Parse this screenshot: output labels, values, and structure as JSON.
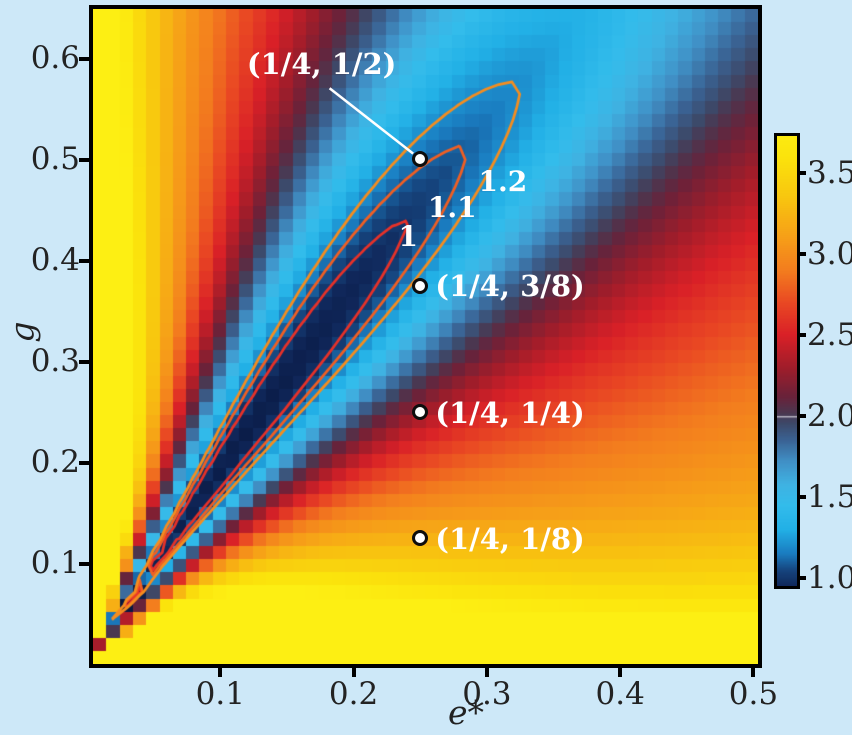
{
  "page": {
    "background": "#cde8f8"
  },
  "chart_data": {
    "type": "heatmap",
    "xlabel": "e*",
    "ylabel": "g",
    "x_range": [
      0,
      0.5
    ],
    "y_range": [
      0,
      0.65
    ],
    "x_ticks": [
      {
        "value": 0.1,
        "label": "0.1"
      },
      {
        "value": 0.2,
        "label": "0.2"
      },
      {
        "value": 0.3,
        "label": "0.3"
      },
      {
        "value": 0.4,
        "label": "0.4"
      },
      {
        "value": 0.5,
        "label": "0.5"
      }
    ],
    "y_ticks": [
      {
        "value": 0.1,
        "label": "0.1"
      },
      {
        "value": 0.2,
        "label": "0.2"
      },
      {
        "value": 0.3,
        "label": "0.3"
      },
      {
        "value": 0.4,
        "label": "0.4"
      },
      {
        "value": 0.5,
        "label": "0.5"
      },
      {
        "value": 0.6,
        "label": "0.6"
      }
    ],
    "colorbar": {
      "vmin": 0.948,
      "vmax": 3.728,
      "divider_value": 2.0,
      "ticks": [
        {
          "value": 1.0,
          "label": "1.0"
        },
        {
          "value": 1.5,
          "label": "1.5"
        },
        {
          "value": 2.0,
          "label": "2.0"
        },
        {
          "value": 2.5,
          "label": "2.5"
        },
        {
          "value": 3.0,
          "label": "3.0"
        },
        {
          "value": 3.5,
          "label": "3.5"
        }
      ],
      "colormap": [
        [
          0.8,
          "#081840"
        ],
        [
          0.95,
          "#10275a"
        ],
        [
          1.05,
          "#16467f"
        ],
        [
          1.15,
          "#1a7cc0"
        ],
        [
          1.3,
          "#22b0e6"
        ],
        [
          1.45,
          "#33bceb"
        ],
        [
          1.58,
          "#3fb2e2"
        ],
        [
          1.72,
          "#4090c6"
        ],
        [
          1.85,
          "#3a6394"
        ],
        [
          1.95,
          "#3c4a6b"
        ],
        [
          2.02,
          "#4b3750"
        ],
        [
          2.12,
          "#69223a"
        ],
        [
          2.3,
          "#a01d2a"
        ],
        [
          2.5,
          "#d92027"
        ],
        [
          2.7,
          "#e94823"
        ],
        [
          2.9,
          "#f37d1e"
        ],
        [
          3.1,
          "#f69e18"
        ],
        [
          3.35,
          "#f8c60f"
        ],
        [
          3.6,
          "#fbe30c"
        ],
        [
          3.8,
          "#fdef13"
        ]
      ]
    },
    "contours": {
      "levels": [
        {
          "value": 1.0,
          "color": "#e73128",
          "label": "1",
          "label_x": 0.241,
          "label_y": 0.424
        },
        {
          "value": 1.1,
          "color": "#f15f22",
          "label": "1.1",
          "label_x": 0.274,
          "label_y": 0.452
        },
        {
          "value": 1.2,
          "color": "#f68d1e",
          "label": "1.2",
          "label_x": 0.312,
          "label_y": 0.478
        }
      ]
    },
    "points": [
      {
        "label": "(1/4, 1/2)",
        "x": 0.25,
        "y": 0.5,
        "label_placement": "leader",
        "label_x": 0.176,
        "label_y": 0.595,
        "leader_from_x": 0.182,
        "leader_from_y": 0.571,
        "leader_to_x": 0.2447,
        "leader_to_y": 0.5063
      },
      {
        "label": "(1/4, 3/8)",
        "x": 0.25,
        "y": 0.375,
        "label_placement": "right"
      },
      {
        "label": "(1/4, 1/4)",
        "x": 0.25,
        "y": 0.25,
        "label_placement": "right"
      },
      {
        "label": "(1/4, 1/8)",
        "x": 0.25,
        "y": 0.125,
        "label_placement": "right"
      }
    ],
    "grid": {
      "nx": 50,
      "ny": 50
    },
    "value_cap": [
      0.8,
      3.8
    ],
    "field_model": {
      "valley_axis": {
        "slope": 2.0,
        "curvature": 0.35
      },
      "valley_depth": {
        "base": 2.0,
        "depth": 1.15,
        "m0": 0.22,
        "sigma": 0.655
      },
      "upper_flank": {
        "shoulder": 1.35,
        "delta": 0.55,
        "slope": 0.55
      },
      "lower_flank": {
        "shoulder": 1.45,
        "delta": 0.5,
        "slope": 0.55
      },
      "spread": {
        "ref": 0.4,
        "power": 0.4
      },
      "noise": {
        "m_max": 0.09,
        "amp": 1.15
      }
    }
  }
}
